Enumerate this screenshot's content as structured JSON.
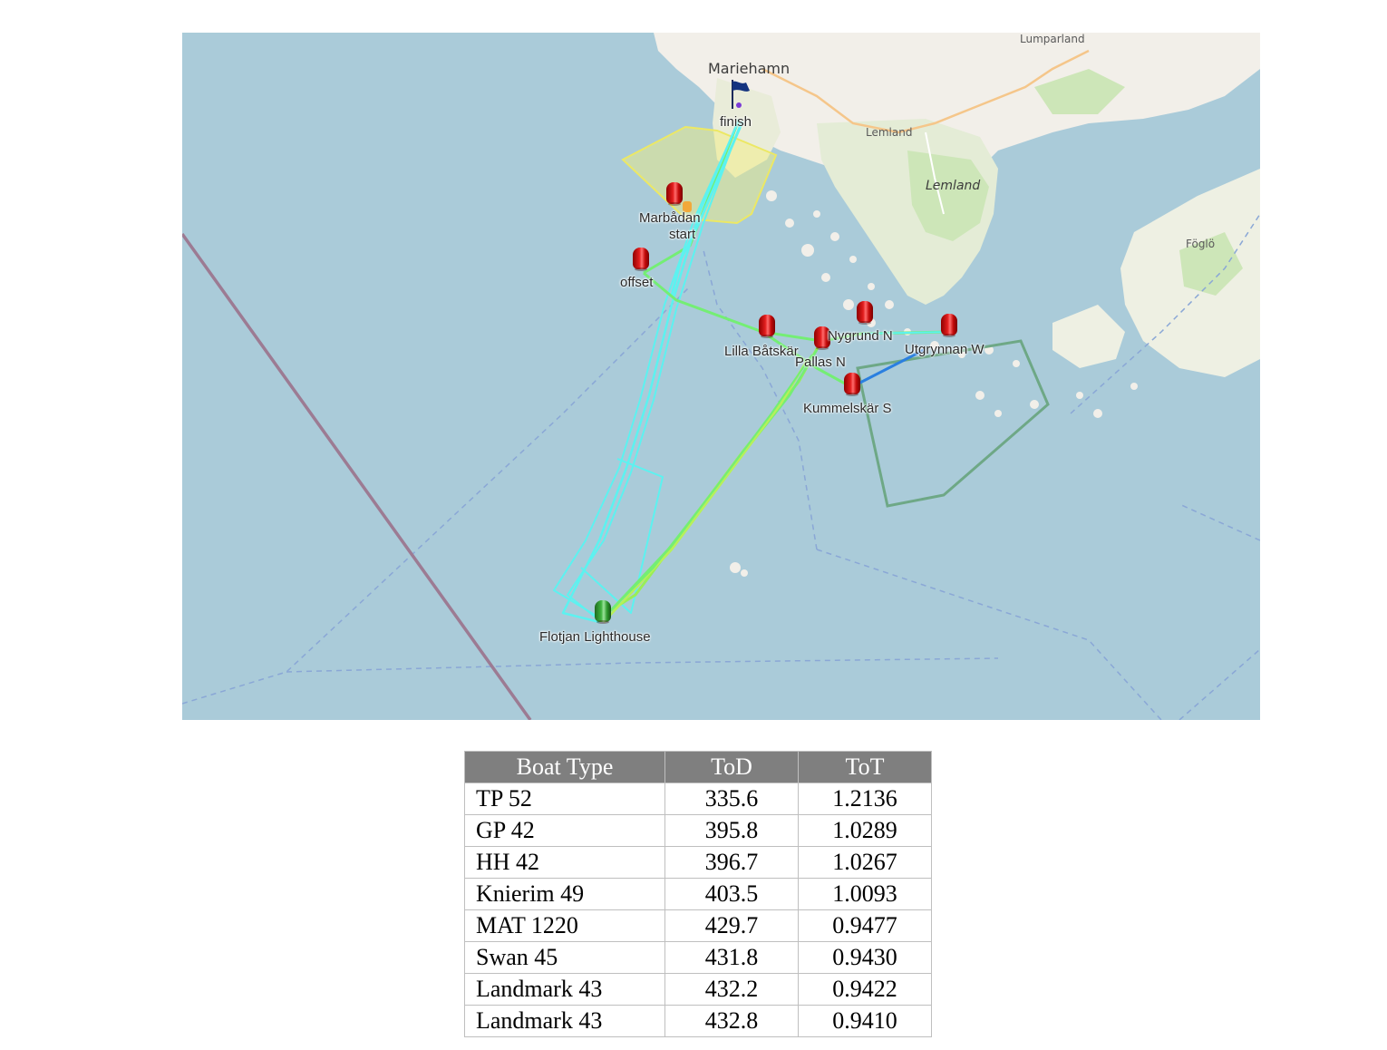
{
  "map": {
    "places": [
      {
        "name": "Mariehamn",
        "kind": "city"
      },
      {
        "name": "Lumparland",
        "kind": "small"
      },
      {
        "name": "Lemland",
        "kind": "small"
      },
      {
        "name": "Lemland",
        "kind": "italic"
      },
      {
        "name": "Föglö",
        "kind": "small"
      }
    ],
    "marks": [
      {
        "label": "finish",
        "type": "flag"
      },
      {
        "label": "Marbådan",
        "type": "red-buoy"
      },
      {
        "label": "start",
        "type": "yellow-marker"
      },
      {
        "label": "offset",
        "type": "red-buoy"
      },
      {
        "label": "Lilla Båtskär",
        "type": "red-buoy"
      },
      {
        "label": "Pallas N",
        "type": "red-buoy"
      },
      {
        "label": "Nygrund N",
        "type": "red-buoy"
      },
      {
        "label": "Utgrynnan W",
        "type": "red-buoy"
      },
      {
        "label": "Kummelskär S",
        "type": "red-buoy"
      },
      {
        "label": "Flotjan Lighthouse",
        "type": "green-buoy"
      }
    ],
    "colors": {
      "sea": "#aacbd9",
      "land": "#f2efe9",
      "forest": "#cde6b8",
      "track_cyan": "#5cf2f0",
      "track_green": "#74ee74",
      "track_blue": "#2a7fe0",
      "area_yellow": "#f3f07a",
      "area_green": "#6ea886"
    }
  },
  "table": {
    "headers": [
      "Boat Type",
      "ToD",
      "ToT"
    ],
    "rows": [
      {
        "boat": "TP 52",
        "tod": "335.6",
        "tot": "1.2136"
      },
      {
        "boat": "GP 42",
        "tod": "395.8",
        "tot": "1.0289"
      },
      {
        "boat": "HH 42",
        "tod": "396.7",
        "tot": "1.0267"
      },
      {
        "boat": "Knierim 49",
        "tod": "403.5",
        "tot": "1.0093"
      },
      {
        "boat": "MAT 1220",
        "tod": "429.7",
        "tot": "0.9477"
      },
      {
        "boat": "Swan 45",
        "tod": "431.8",
        "tot": "0.9430"
      },
      {
        "boat": "Landmark 43",
        "tod": "432.2",
        "tot": "0.9422"
      },
      {
        "boat": "Landmark 43",
        "tod": "432.8",
        "tot": "0.9410"
      }
    ]
  }
}
